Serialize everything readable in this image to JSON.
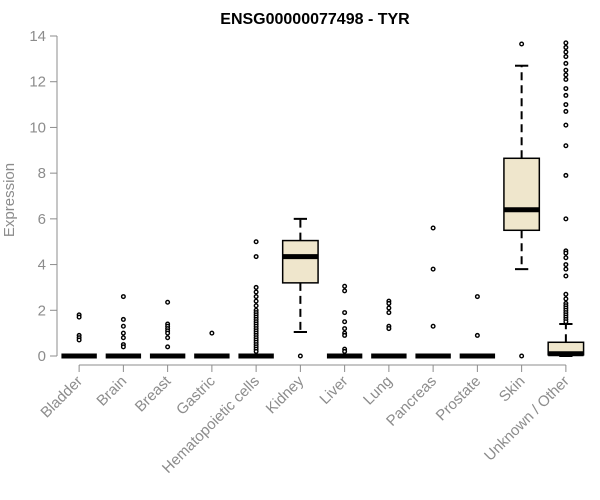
{
  "chart_data": {
    "type": "boxplot",
    "title": "ENSG00000077498 - TYR",
    "xlabel": "",
    "ylabel": "Expression",
    "ylim": [
      0,
      14
    ],
    "yticks": [
      0,
      2,
      4,
      6,
      8,
      10,
      12,
      14
    ],
    "categories": [
      "Bladder",
      "Brain",
      "Breast",
      "Gastric",
      "Hematopoietic cells",
      "Kidney",
      "Liver",
      "Lung",
      "Pancreas",
      "Prostate",
      "Skin",
      "Unknown / Other"
    ],
    "colors": {
      "box_fill": "#efe6cc",
      "box_stroke": "#000000",
      "axis": "#8c8c8c"
    },
    "boxes": [
      {
        "name": "Bladder",
        "min": 0,
        "q1": 0,
        "median": 0,
        "q3": 0,
        "max": 0,
        "outliers": [
          1.8,
          1.7,
          0.9,
          0.8,
          0.7
        ]
      },
      {
        "name": "Brain",
        "min": 0,
        "q1": 0,
        "median": 0,
        "q3": 0,
        "max": 0,
        "outliers": [
          2.6,
          1.6,
          1.3,
          1.0,
          0.8,
          0.5,
          0.4
        ]
      },
      {
        "name": "Breast",
        "min": 0,
        "q1": 0,
        "median": 0,
        "q3": 0,
        "max": 0,
        "outliers": [
          2.35,
          1.4,
          1.3,
          1.2,
          1.1,
          1.0,
          0.8,
          0.4
        ]
      },
      {
        "name": "Gastric",
        "min": 0,
        "q1": 0,
        "median": 0,
        "q3": 0,
        "max": 0,
        "outliers": [
          1.0
        ]
      },
      {
        "name": "Hematopoietic cells",
        "min": 0,
        "q1": 0,
        "median": 0,
        "q3": 0,
        "max": 0,
        "outliers": [
          5.0,
          4.35,
          3.0,
          2.8,
          2.6,
          2.4,
          2.2,
          2.0,
          1.9,
          1.8,
          1.7,
          1.6,
          1.5,
          1.4,
          1.3,
          1.2,
          1.1,
          1.0,
          0.9,
          0.8,
          0.7,
          0.6,
          0.5,
          0.4,
          0.3,
          0.2
        ]
      },
      {
        "name": "Kidney",
        "min": 1.05,
        "q1": 3.2,
        "median": 4.35,
        "q3": 5.05,
        "max": 6.0,
        "outliers": [
          0
        ]
      },
      {
        "name": "Liver",
        "min": 0,
        "q1": 0,
        "median": 0,
        "q3": 0,
        "max": 0,
        "outliers": [
          3.05,
          2.85,
          1.9,
          1.5,
          1.2,
          1.0,
          0.9,
          0.3,
          0.2
        ]
      },
      {
        "name": "Lung",
        "min": 0,
        "q1": 0,
        "median": 0,
        "q3": 0,
        "max": 0,
        "outliers": [
          2.4,
          2.3,
          2.1,
          1.9,
          1.3,
          1.2
        ]
      },
      {
        "name": "Pancreas",
        "min": 0,
        "q1": 0,
        "median": 0,
        "q3": 0,
        "max": 0,
        "outliers": [
          5.6,
          3.8,
          1.3
        ]
      },
      {
        "name": "Prostate",
        "min": 0,
        "q1": 0,
        "median": 0,
        "q3": 0,
        "max": 0,
        "outliers": [
          2.6,
          0.9
        ]
      },
      {
        "name": "Skin",
        "min": 3.8,
        "q1": 5.5,
        "median": 6.4,
        "q3": 8.65,
        "max": 12.7,
        "outliers": [
          13.65,
          0
        ]
      },
      {
        "name": "Unknown / Other",
        "min": 0,
        "q1": 0.05,
        "median": 0.1,
        "q3": 0.6,
        "max": 1.4,
        "outliers": [
          13.7,
          13.5,
          13.3,
          13.1,
          12.8,
          12.5,
          12.3,
          12.1,
          11.7,
          11.4,
          11.0,
          10.7,
          10.1,
          9.2,
          7.9,
          6.0,
          4.6,
          4.5,
          4.3,
          4.0,
          3.8,
          3.5,
          2.7,
          2.5,
          2.3,
          2.2,
          2.1,
          2.0,
          1.9,
          1.8,
          1.7,
          1.6,
          1.5
        ]
      }
    ]
  }
}
